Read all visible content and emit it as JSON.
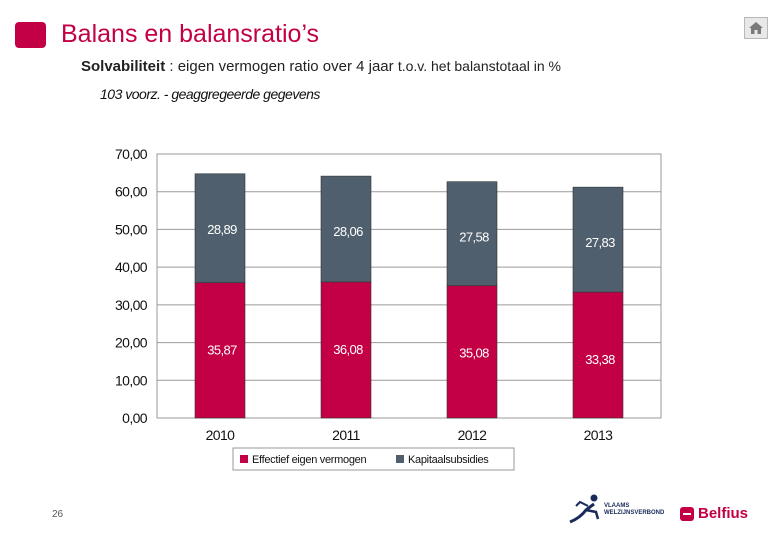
{
  "header": {
    "title": "Balans en balansratio’s",
    "subtitle_bold": "Solvabiliteit",
    "subtitle_rest": ": eigen vermogen ratio over 4 jaar",
    "subtitle_small": "t.o.v. het balanstotaal in %",
    "caption": "103 voorz. - geaggregeerde gegevens"
  },
  "footer": {
    "page_number": "26",
    "partner_name_line1": "VLAAMS",
    "partner_name_line2": "WELZIJNSVERBOND",
    "brand": "Belfius"
  },
  "colors": {
    "accent": "#c30045",
    "series_equity": "#c30045",
    "series_capital": "#4f5f6d"
  },
  "chart_data": {
    "type": "bar",
    "stacked": true,
    "categories": [
      "2010",
      "2011",
      "2012",
      "2013"
    ],
    "series": [
      {
        "name": "Effectief eigen vermogen",
        "values": [
          35.87,
          36.08,
          35.08,
          33.38
        ],
        "labels": [
          "35,87",
          "36,08",
          "35,08",
          "33,38"
        ],
        "color": "#c30045"
      },
      {
        "name": "Kapitaalsubsidies",
        "values": [
          28.89,
          28.06,
          27.58,
          27.83
        ],
        "labels": [
          "28,89",
          "28,06",
          "27,58",
          "27,83"
        ],
        "color": "#4f5f6d"
      }
    ],
    "ylim": [
      0,
      70
    ],
    "yticks": [
      "0,00",
      "10,00",
      "20,00",
      "30,00",
      "40,00",
      "50,00",
      "60,00",
      "70,00"
    ],
    "grid": true,
    "legend": "bottom",
    "title": "103 voorz. - geaggregeerde gegevens",
    "xlabel": "",
    "ylabel": ""
  }
}
